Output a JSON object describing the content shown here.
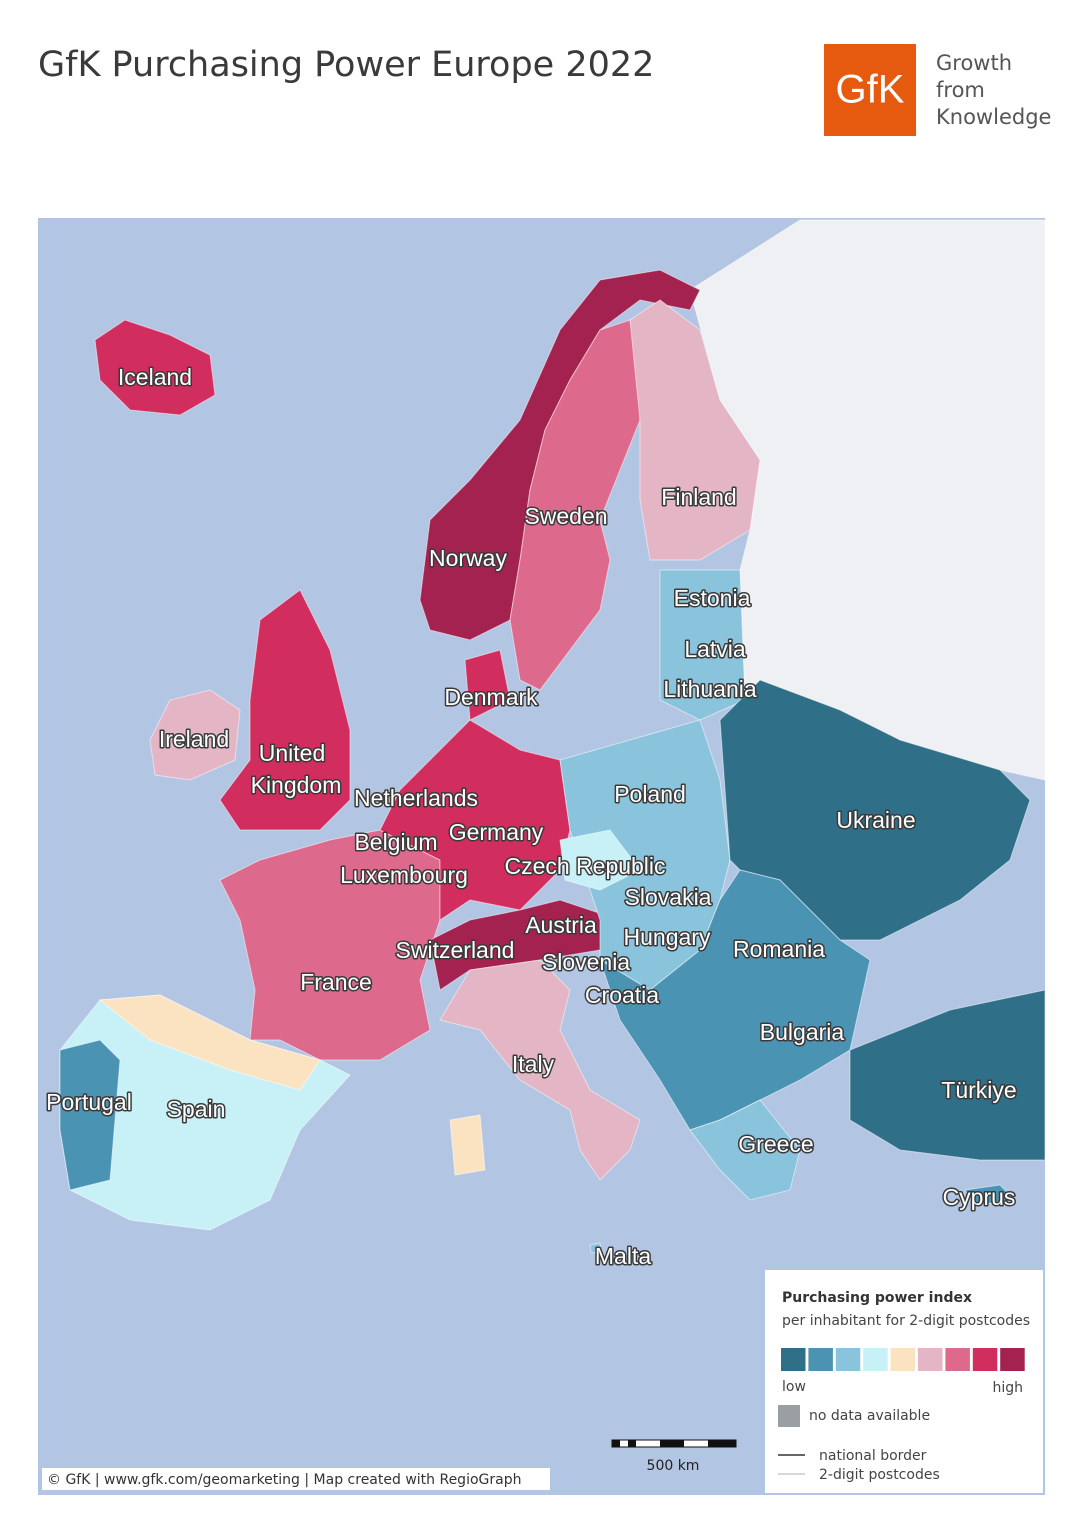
{
  "header": {
    "title": "GfK Purchasing Power Europe 2022",
    "logo": "GfK",
    "tagline": [
      "Growth",
      "from",
      "Knowledge"
    ]
  },
  "map": {
    "countries": [
      "Iceland",
      "Norway",
      "Sweden",
      "Finland",
      "Estonia",
      "Latvia",
      "Lithuania",
      "Denmark",
      "Ireland",
      [
        "United",
        "Kingdom"
      ],
      "Netherlands",
      "Poland",
      "Ukraine",
      "Germany",
      "Belgium",
      "Czech Republic",
      "Luxembourg",
      "Slovakia",
      "Austria",
      "Hungary",
      "Romania",
      "Switzerland",
      "Slovenia",
      "France",
      "Croatia",
      "Bulgaria",
      "Italy",
      "Türkiye",
      "Portugal",
      "Spain",
      "Greece",
      "Cyprus",
      "Malta"
    ]
  },
  "legend": {
    "title": "Purchasing power index",
    "subtitle": "per inhabitant for 2-digit postcodes",
    "colors": [
      "#2f6f87",
      "#4b93b3",
      "#8ac4dc",
      "#c7f1f6",
      "#fbe3c1",
      "#e3b5c5",
      "#dd6a8d",
      "#d12d5f",
      "#a32250"
    ],
    "low": "low",
    "high": "high",
    "no_data": "no data available",
    "national_border": "national border",
    "postcodes": "2-digit postcodes"
  },
  "scale_bar": "500 km",
  "credit": "© GfK | www.gfk.com/geomarketing | Map created with RegioGraph"
}
